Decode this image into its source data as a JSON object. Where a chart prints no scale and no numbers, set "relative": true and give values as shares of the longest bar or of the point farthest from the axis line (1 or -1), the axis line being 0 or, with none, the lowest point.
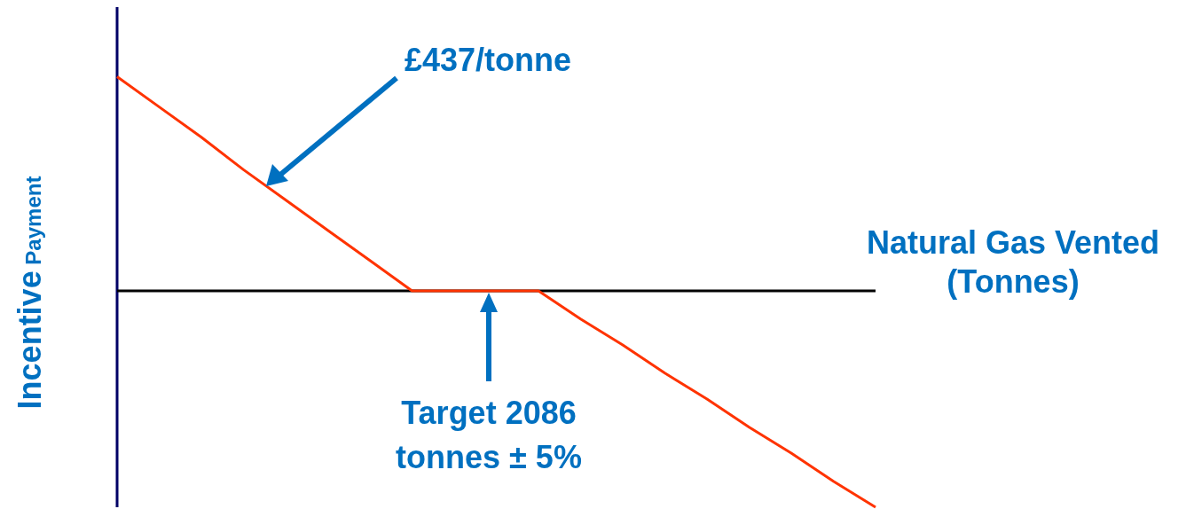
{
  "chart_data": {
    "type": "line",
    "relative": true,
    "xlabel": "Natural Gas Vented (Tonnes)",
    "ylabel": "Incentive Payment",
    "categories": [
      null,
      null,
      null,
      null,
      null,
      null,
      null,
      null,
      null,
      null,
      null,
      null,
      null,
      null,
      null,
      null,
      null,
      null,
      null
    ],
    "series": [
      {
        "color": "#ff3300",
        "values": [
          0.99,
          0.85,
          0.71,
          0.56,
          0.42,
          0.28,
          0.14,
          0,
          0,
          0,
          0,
          -0.13,
          -0.25,
          -0.38,
          -0.5,
          -0.63,
          -0.75,
          -0.88,
          -1
        ]
      }
    ],
    "annotations": [
      "£437/tonne",
      "Target 2086 tonnes ± 5%"
    ],
    "marker": "none",
    "line_style": "solid"
  }
}
